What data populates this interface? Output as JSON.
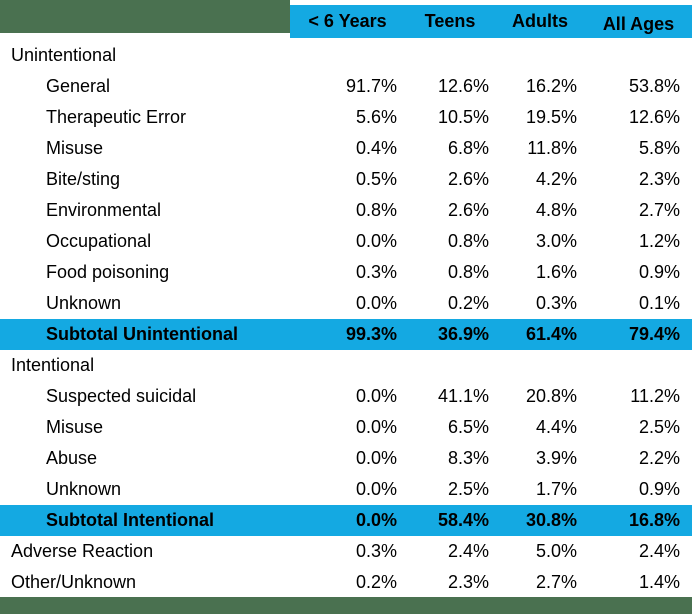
{
  "colors": {
    "header_cyan": "#14a9e2",
    "border_green": "#4a7150",
    "text": "#000000",
    "background": "#ffffff"
  },
  "chart_data": {
    "type": "table",
    "description": "Percentage table of exposure reasons by age group",
    "columns": [
      "< 6 Years",
      "Teens",
      "Adults",
      "All Ages"
    ],
    "rows": [
      {
        "label": "Unintentional",
        "type": "section"
      },
      {
        "label": "General",
        "type": "item",
        "values": [
          "91.7%",
          "12.6%",
          "16.2%",
          "53.8%"
        ]
      },
      {
        "label": "Therapeutic Error",
        "type": "item",
        "values": [
          "5.6%",
          "10.5%",
          "19.5%",
          "12.6%"
        ]
      },
      {
        "label": "Misuse",
        "type": "item",
        "values": [
          "0.4%",
          "6.8%",
          "11.8%",
          "5.8%"
        ]
      },
      {
        "label": "Bite/sting",
        "type": "item",
        "values": [
          "0.5%",
          "2.6%",
          "4.2%",
          "2.3%"
        ]
      },
      {
        "label": "Environmental",
        "type": "item",
        "values": [
          "0.8%",
          "2.6%",
          "4.8%",
          "2.7%"
        ]
      },
      {
        "label": "Occupational",
        "type": "item",
        "values": [
          "0.0%",
          "0.8%",
          "3.0%",
          "1.2%"
        ]
      },
      {
        "label": "Food poisoning",
        "type": "item",
        "values": [
          "0.3%",
          "0.8%",
          "1.6%",
          "0.9%"
        ]
      },
      {
        "label": "Unknown",
        "type": "item",
        "values": [
          "0.0%",
          "0.2%",
          "0.3%",
          "0.1%"
        ]
      },
      {
        "label": "Subtotal Unintentional",
        "type": "subtotal",
        "values": [
          "99.3%",
          "36.9%",
          "61.4%",
          "79.4%"
        ]
      },
      {
        "label": "Intentional",
        "type": "section"
      },
      {
        "label": "Suspected suicidal",
        "type": "item",
        "values": [
          "0.0%",
          "41.1%",
          "20.8%",
          "11.2%"
        ]
      },
      {
        "label": "Misuse",
        "type": "item",
        "values": [
          "0.0%",
          "6.5%",
          "4.4%",
          "2.5%"
        ]
      },
      {
        "label": "Abuse",
        "type": "item",
        "values": [
          "0.0%",
          "8.3%",
          "3.9%",
          "2.2%"
        ]
      },
      {
        "label": "Unknown",
        "type": "item",
        "values": [
          "0.0%",
          "2.5%",
          "1.7%",
          "0.9%"
        ]
      },
      {
        "label": "Subtotal Intentional",
        "type": "subtotal",
        "values": [
          "0.0%",
          "58.4%",
          "30.8%",
          "16.8%"
        ]
      },
      {
        "label": "Adverse Reaction",
        "type": "row",
        "values": [
          "0.3%",
          "2.4%",
          "5.0%",
          "2.4%"
        ]
      },
      {
        "label": "Other/Unknown",
        "type": "row",
        "values": [
          "0.2%",
          "2.3%",
          "2.7%",
          "1.4%"
        ]
      }
    ]
  }
}
